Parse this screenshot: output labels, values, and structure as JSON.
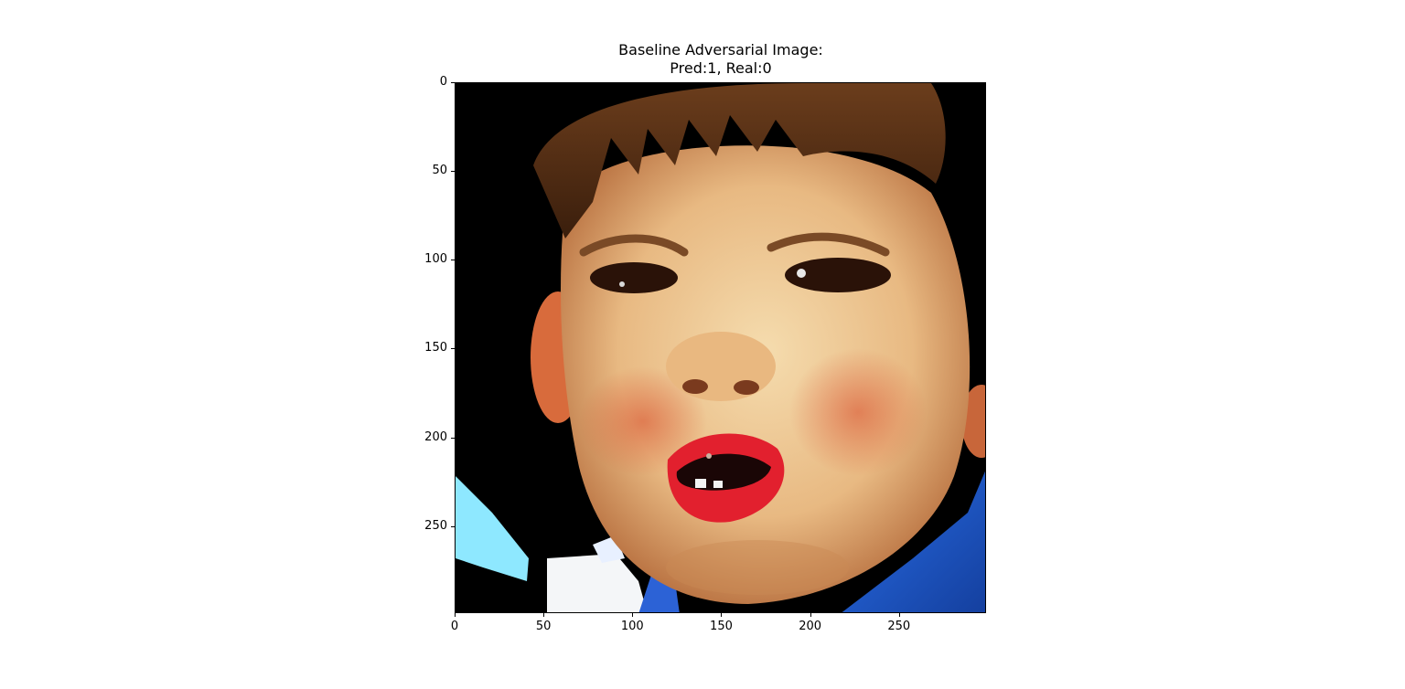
{
  "figure": {
    "title_line1": "Baseline Adversarial Image:",
    "title_line2": "Pred:1, Real:0"
  },
  "axes": {
    "x_ticks": [
      "0",
      "50",
      "100",
      "150",
      "200",
      "250"
    ],
    "y_ticks": [
      "0",
      "50",
      "100",
      "150",
      "200",
      "250"
    ],
    "x_tick_values": [
      0,
      50,
      100,
      150,
      200,
      250
    ],
    "y_tick_values": [
      0,
      50,
      100,
      150,
      200,
      250
    ],
    "xlim": [
      0,
      299
    ],
    "ylim": [
      299,
      0
    ],
    "y_inverted": true
  },
  "image": {
    "description_icon": "child-face-photo",
    "colors": {
      "background": "#000000",
      "skin": "#f0d2a0",
      "hair": "#5a3418",
      "lips": "#e2202e",
      "shirt": "#1e5bd1",
      "light_blue": "#7fe6ff"
    }
  }
}
